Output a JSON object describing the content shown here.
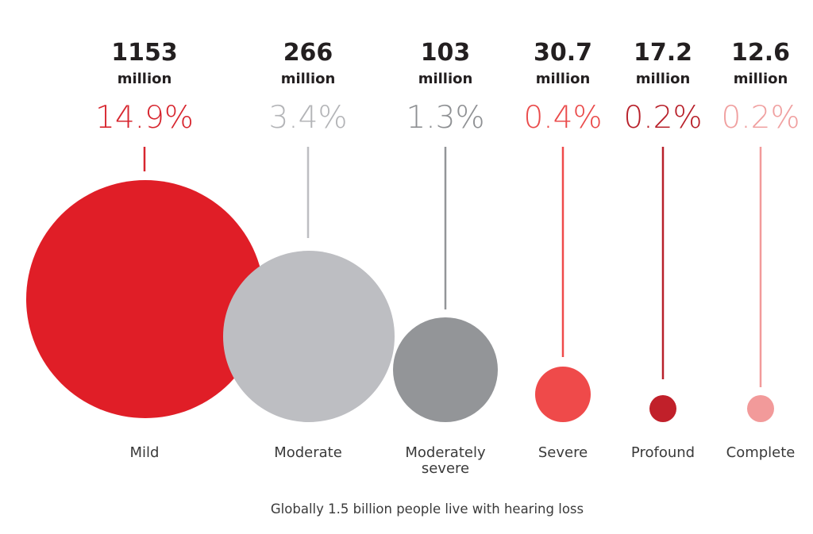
{
  "chart_data": {
    "type": "bubble",
    "caption": "Globally 1.5 billion people live with hearing loss",
    "unit": "million",
    "categories": [
      {
        "label": [
          "Mild"
        ],
        "value": "1153",
        "percent": "14.9%",
        "color": "#e01e27"
      },
      {
        "label": [
          "Moderate"
        ],
        "value": "266",
        "percent": "3.4%",
        "color": "#bdbec2"
      },
      {
        "label": [
          "Moderately",
          "severe"
        ],
        "value": "103",
        "percent": "1.3%",
        "color": "#939598"
      },
      {
        "label": [
          "Severe"
        ],
        "value": "30.7",
        "percent": "0.4%",
        "color": "#ef4a4a"
      },
      {
        "label": [
          "Profound"
        ],
        "value": "17.2",
        "percent": "0.2%",
        "color": "#c1202a"
      },
      {
        "label": [
          "Complete"
        ],
        "value": "12.6",
        "percent": "0.2%",
        "color": "#f29a9a"
      }
    ]
  }
}
